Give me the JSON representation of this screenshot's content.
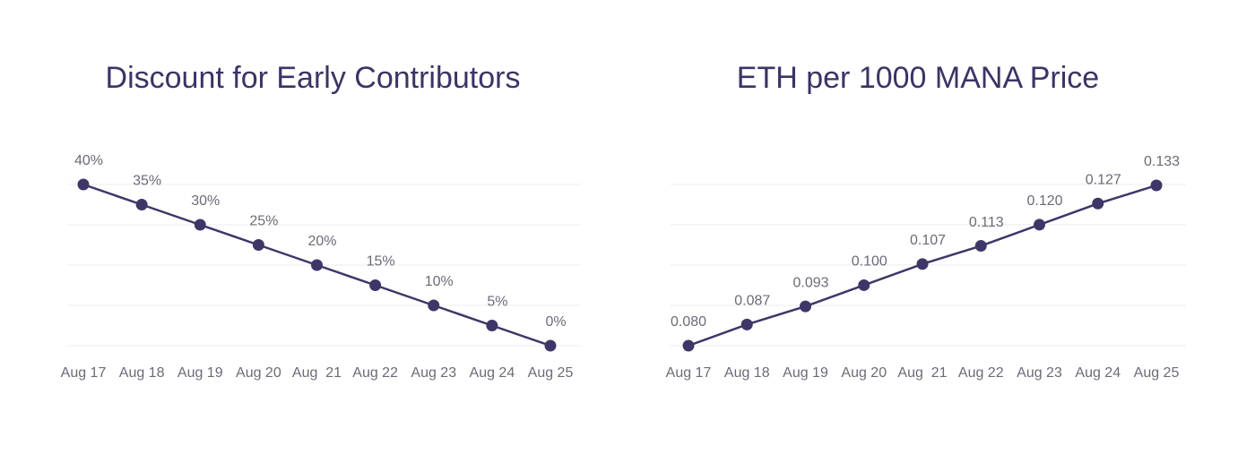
{
  "chart_data": [
    {
      "type": "line",
      "title": "Discount for Early Contributors",
      "categories": [
        "Aug 17",
        "Aug 18",
        "Aug 19",
        "Aug 20",
        "Aug  21",
        "Aug 22",
        "Aug 23",
        "Aug 24",
        "Aug 25"
      ],
      "values": [
        40,
        35,
        30,
        25,
        20,
        15,
        10,
        5,
        0
      ],
      "value_labels": [
        "40%",
        "35%",
        "30%",
        "25%",
        "20%",
        "15%",
        "10%",
        "5%",
        "0%"
      ],
      "color": "#3f3668",
      "ylim": [
        0,
        40
      ],
      "yticks": [
        0,
        10,
        20,
        30,
        40
      ],
      "grid": true
    },
    {
      "type": "line",
      "title": "ETH per 1000 MANA Price",
      "categories": [
        "Aug 17",
        "Aug 18",
        "Aug 19",
        "Aug 20",
        "Aug  21",
        "Aug 22",
        "Aug 23",
        "Aug 24",
        "Aug 25"
      ],
      "values": [
        0.08,
        0.087,
        0.093,
        0.1,
        0.107,
        0.113,
        0.12,
        0.127,
        0.133
      ],
      "value_labels": [
        "0.080",
        "0.087",
        "0.093",
        "0.100",
        "0.107",
        "0.113",
        "0.120",
        "0.127",
        "0.133"
      ],
      "color": "#3f3668",
      "ylim": [
        0.08,
        0.1333
      ],
      "yticks": [
        0.08,
        0.0933,
        0.1067,
        0.12,
        0.1333
      ],
      "grid": true
    }
  ]
}
